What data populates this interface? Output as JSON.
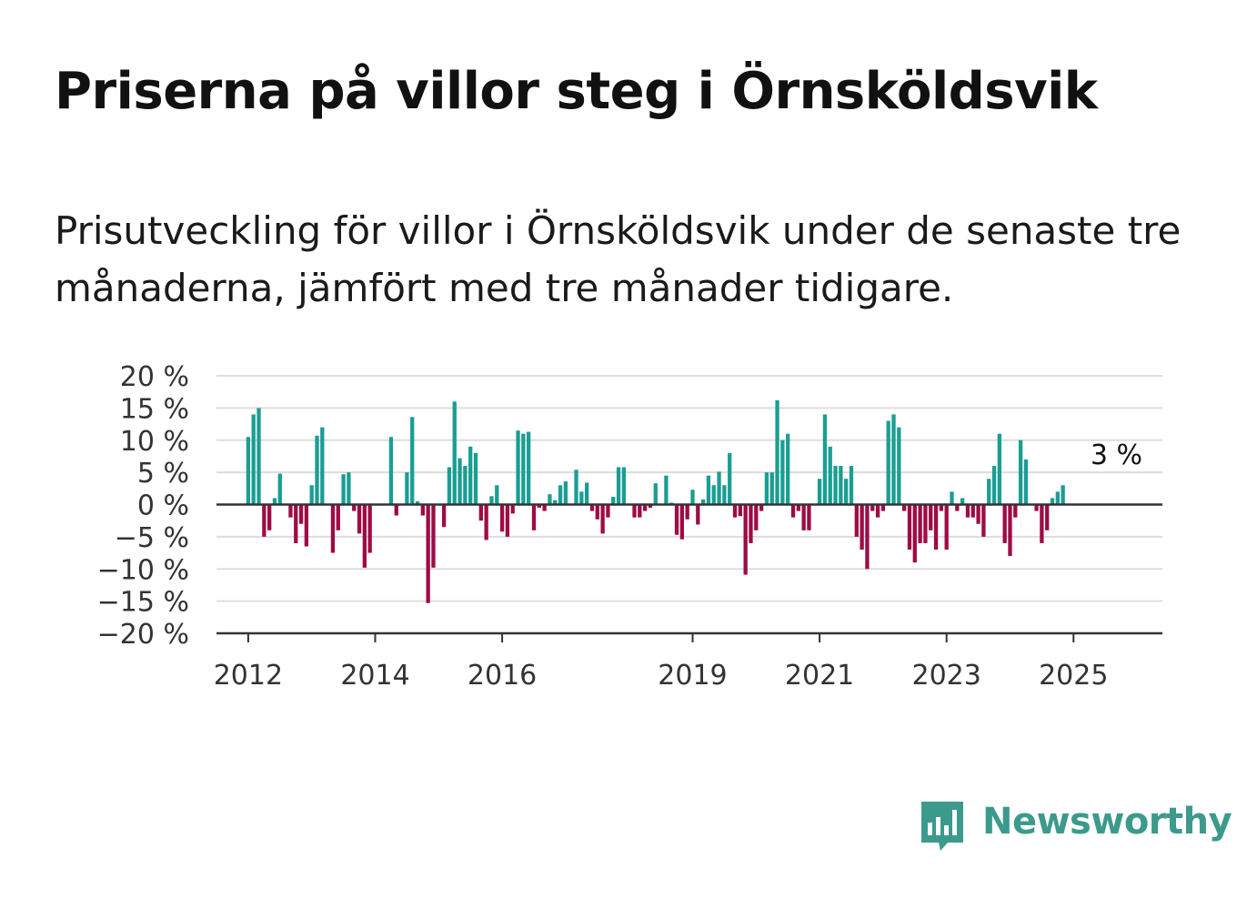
{
  "title": "Priserna på villor steg i Örnsköldsvik",
  "subtitle": "Prisutveckling för villor i Örnsköldsvik under de senaste tre månaderna, jämfört med tre månader tidigare.",
  "brand": {
    "name": "Newsworthy",
    "icon": "newsworthy-bar-chart-icon",
    "color": "#3c9a8c"
  },
  "colors": {
    "positive": "#1a9e94",
    "negative": "#9e0b44",
    "grid": "#dddddd",
    "axis": "#333333",
    "text": "#333333"
  },
  "chart_data": {
    "type": "bar",
    "title": "",
    "xlabel": "",
    "ylabel": "",
    "ylim": [
      -20,
      20
    ],
    "xlim": [
      2011.5,
      2026.4
    ],
    "y_ticks": [
      20,
      15,
      10,
      5,
      0,
      -5,
      -10,
      -15,
      -20
    ],
    "y_tick_labels": [
      "20 %",
      "15 %",
      "10 %",
      "5 %",
      "0 %",
      "−5 %",
      "−10 %",
      "−15 %",
      "−20 %"
    ],
    "x_ticks": [
      2012,
      2014,
      2016,
      2019,
      2021,
      2023,
      2025
    ],
    "x_tick_labels": [
      "2012",
      "2014",
      "2016",
      "2019",
      "2021",
      "2023",
      "2025"
    ],
    "grid": true,
    "annotation": "3 %",
    "start": "2012-01",
    "frequency": "monthly",
    "values": [
      10.5,
      14,
      15,
      -5,
      -4,
      1,
      4.8,
      0,
      -2,
      -6,
      -3,
      -6.5,
      3,
      10.7,
      12,
      0,
      -7.5,
      -4,
      4.7,
      5,
      -1,
      -4.5,
      -9.8,
      -7.5,
      0,
      0,
      0,
      10.5,
      -1.7,
      0,
      5,
      13.6,
      0.5,
      -1.7,
      -15.3,
      -9.8,
      0,
      -3.5,
      5.8,
      16,
      7.2,
      6,
      9,
      8,
      -2.5,
      -5.5,
      1.3,
      3,
      -4.2,
      -5,
      -1.4,
      11.5,
      11,
      11.3,
      -4,
      -0.5,
      -1,
      1.6,
      0.7,
      3,
      3.6,
      0,
      5.4,
      2,
      3.4,
      -1,
      -2.3,
      -4.5,
      -2,
      1.2,
      5.8,
      5.8,
      0,
      -2,
      -2,
      -1,
      -0.5,
      3.3,
      0,
      4.5,
      0.3,
      -4.7,
      -5.4,
      -2.3,
      2.3,
      -3.1,
      0.8,
      4.5,
      3,
      5.1,
      3,
      8,
      -2,
      -1.8,
      -10.9,
      -6,
      -4,
      -1,
      5,
      5,
      16.2,
      10,
      11,
      -2,
      -1,
      -4,
      -4,
      0,
      4,
      14,
      9,
      6,
      6,
      4,
      6,
      -5,
      -7,
      -10,
      -1,
      -2,
      -1,
      13,
      14,
      12,
      -1,
      -7,
      -9,
      -6,
      -6,
      -4,
      -7,
      -1,
      -7,
      2,
      -1,
      1,
      -2,
      -2,
      -3,
      -5,
      4,
      6,
      11,
      -6,
      -8,
      -2,
      10,
      7,
      0,
      -1,
      -6,
      -4,
      1,
      2,
      3
    ]
  }
}
